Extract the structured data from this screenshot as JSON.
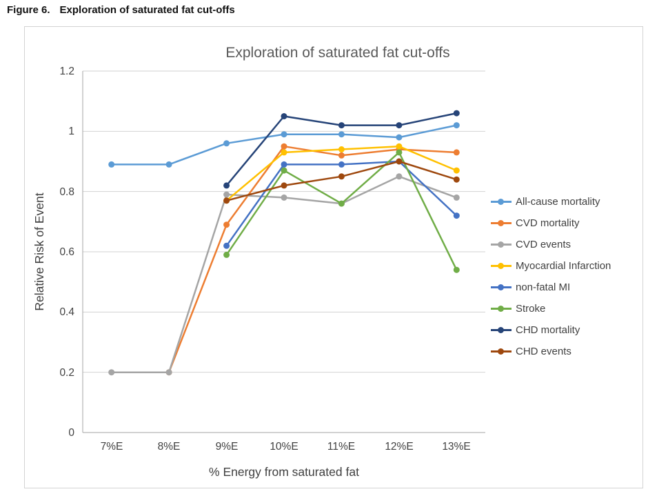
{
  "figure": {
    "label": "Figure 6.",
    "title": "Exploration of saturated fat cut-offs"
  },
  "chart_data": {
    "type": "line",
    "title": "Exploration of saturated fat cut-offs",
    "xlabel": "% Energy from saturated fat",
    "ylabel": "Relative Risk of Event",
    "categories": [
      "7%E",
      "8%E",
      "9%E",
      "10%E",
      "11%E",
      "12%E",
      "13%E"
    ],
    "ylim": [
      0,
      1.2
    ],
    "yticks": [
      0,
      0.2,
      0.4,
      0.6,
      0.8,
      1,
      1.2
    ],
    "ytick_labels": [
      "0",
      "0.2",
      "0.4",
      "0.6",
      "0.8",
      "1",
      "1.2"
    ],
    "grid": true,
    "legend_position": "right",
    "series": [
      {
        "name": "All-cause mortality",
        "color": "#5B9BD5",
        "values": [
          0.89,
          0.89,
          0.96,
          0.99,
          0.99,
          0.98,
          1.02
        ]
      },
      {
        "name": "CVD mortality",
        "color": "#ED7D31",
        "values": [
          null,
          0.2,
          0.69,
          0.95,
          0.92,
          0.94,
          0.93
        ]
      },
      {
        "name": "CVD events",
        "color": "#A5A5A5",
        "values": [
          0.2,
          0.2,
          0.79,
          0.78,
          0.76,
          0.85,
          0.78
        ]
      },
      {
        "name": "Myocardial Infarction",
        "color": "#FFC000",
        "values": [
          null,
          null,
          0.77,
          0.93,
          0.94,
          0.95,
          0.87
        ]
      },
      {
        "name": "non-fatal MI",
        "color": "#4472C4",
        "values": [
          null,
          null,
          0.62,
          0.89,
          0.89,
          0.9,
          0.72
        ]
      },
      {
        "name": "Stroke",
        "color": "#70AD47",
        "values": [
          null,
          null,
          0.59,
          0.87,
          0.76,
          0.93,
          0.54
        ]
      },
      {
        "name": "CHD mortality",
        "color": "#264478",
        "values": [
          null,
          null,
          0.82,
          1.05,
          1.02,
          1.02,
          1.06
        ]
      },
      {
        "name": "CHD events",
        "color": "#9E480E",
        "values": [
          null,
          null,
          0.77,
          0.82,
          0.85,
          0.9,
          0.84
        ]
      }
    ]
  }
}
